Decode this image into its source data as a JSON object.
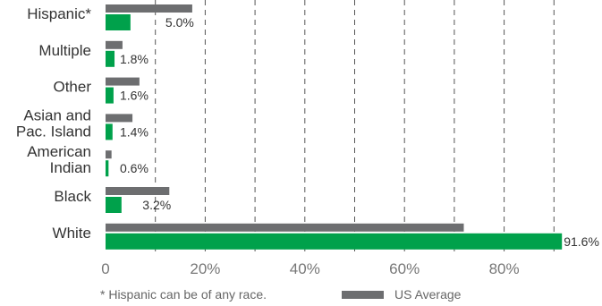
{
  "chart_data": {
    "type": "bar",
    "orientation": "horizontal",
    "categories": [
      "Hispanic*",
      "Multiple",
      "Other",
      "Asian and Pac. Island",
      "American Indian",
      "Black",
      "White"
    ],
    "category_lines": [
      [
        "Hispanic*"
      ],
      [
        "Multiple"
      ],
      [
        "Other"
      ],
      [
        "Asian and",
        "Pac. Island"
      ],
      [
        "American",
        "Indian"
      ],
      [
        "Black"
      ],
      [
        "White"
      ]
    ],
    "series": [
      {
        "name": "US Average",
        "color": "#6d6e70",
        "values": [
          17.4,
          3.4,
          6.8,
          5.4,
          1.2,
          12.8,
          71.9
        ]
      },
      {
        "color": "#00a14b",
        "values": [
          5.0,
          1.8,
          1.6,
          1.4,
          0.6,
          3.2,
          91.6
        ]
      }
    ],
    "data_labels": [
      "5.0%",
      "1.8%",
      "1.6%",
      "1.4%",
      "0.6%",
      "3.2%",
      "91.6%"
    ],
    "x_ticks": [
      0,
      20,
      40,
      60,
      80
    ],
    "x_tick_labels": [
      "0",
      "20%",
      "40%",
      "60%",
      "80%"
    ],
    "xlim": [
      0,
      92
    ],
    "grid": "vertical-dashed",
    "legend_position": "bottom",
    "footnote": "* Hispanic can be of any race."
  }
}
